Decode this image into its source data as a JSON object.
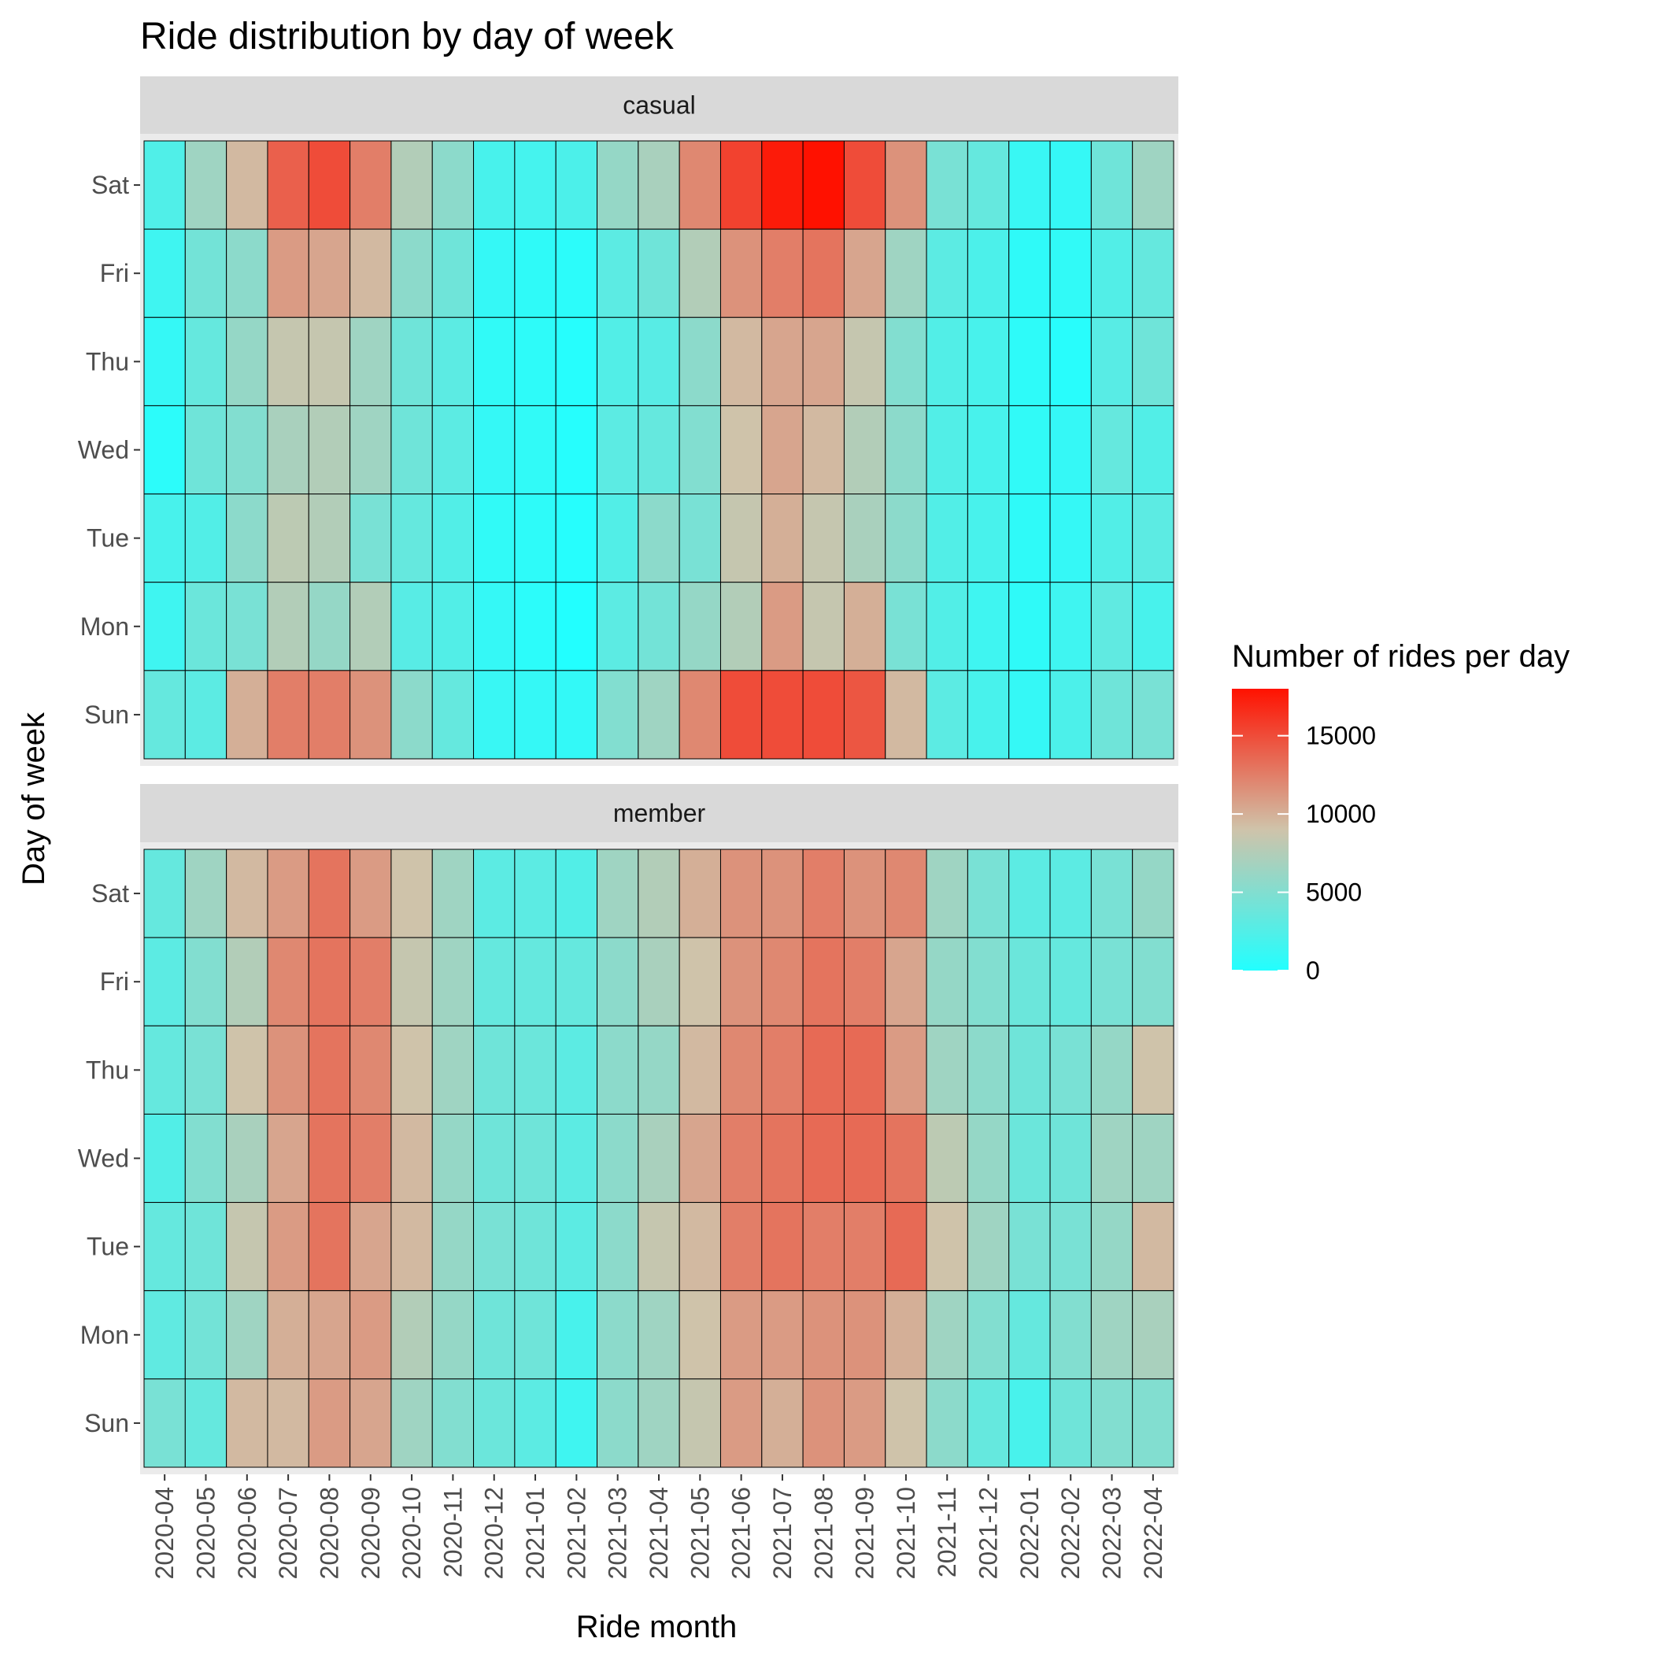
{
  "chart_data": {
    "type": "heatmap",
    "title": "Ride distribution by day of week",
    "xlabel": "Ride month",
    "ylabel": "Day of week",
    "x": [
      "2020-04",
      "2020-05",
      "2020-06",
      "2020-07",
      "2020-08",
      "2020-09",
      "2020-10",
      "2020-11",
      "2020-12",
      "2021-01",
      "2021-02",
      "2021-03",
      "2021-04",
      "2021-05",
      "2021-06",
      "2021-07",
      "2021-08",
      "2021-09",
      "2021-10",
      "2021-11",
      "2021-12",
      "2022-01",
      "2022-02",
      "2022-03",
      "2022-04"
    ],
    "y": [
      "Sat",
      "Fri",
      "Thu",
      "Wed",
      "Tue",
      "Mon",
      "Sun"
    ],
    "legend": {
      "title": "Number of rides per day",
      "ticks": [
        0,
        5000,
        10000,
        15000
      ],
      "range": [
        0,
        18000
      ],
      "low_color": "#22ffff",
      "mid_color": "#cfc3aa",
      "high_color": "#ff1100",
      "placement": "right"
    },
    "panels": [
      {
        "name": "casual",
        "values": [
          [
            2400,
            6500,
            9500,
            14000,
            15000,
            12500,
            7500,
            5500,
            2000,
            1800,
            2200,
            6000,
            7000,
            12000,
            15500,
            17500,
            18000,
            15000,
            11500,
            4500,
            3500,
            1200,
            1000,
            4000,
            6500
          ],
          [
            1500,
            4200,
            5500,
            11000,
            10500,
            9500,
            5500,
            4000,
            1000,
            700,
            500,
            3000,
            4000,
            7500,
            11500,
            12500,
            13000,
            10500,
            6500,
            3000,
            2200,
            700,
            800,
            2500,
            3500
          ],
          [
            1000,
            3500,
            6000,
            8500,
            8500,
            6500,
            4000,
            3000,
            800,
            600,
            200,
            2500,
            2800,
            5500,
            9500,
            10500,
            10500,
            8500,
            5000,
            2500,
            2000,
            600,
            300,
            2800,
            4000
          ],
          [
            500,
            4000,
            5000,
            7000,
            7500,
            6500,
            4000,
            3000,
            1000,
            800,
            200,
            3000,
            3500,
            5000,
            9000,
            10500,
            9500,
            7500,
            5500,
            2500,
            2000,
            800,
            1000,
            3500,
            2500
          ],
          [
            2000,
            2500,
            5500,
            8000,
            7500,
            4500,
            3500,
            2500,
            800,
            600,
            200,
            2500,
            5500,
            4500,
            8500,
            10000,
            8500,
            7000,
            5500,
            2500,
            2000,
            700,
            1000,
            2500,
            3000
          ],
          [
            1500,
            3800,
            4500,
            7500,
            6000,
            7500,
            2800,
            2500,
            1000,
            500,
            0,
            3000,
            4200,
            6000,
            7500,
            11000,
            8500,
            10000,
            4500,
            2500,
            1500,
            700,
            1500,
            3200,
            2000
          ],
          [
            3500,
            3000,
            10000,
            12500,
            12500,
            11500,
            5500,
            3500,
            1200,
            1000,
            900,
            5000,
            6500,
            12000,
            15000,
            15000,
            15000,
            14500,
            9500,
            3000,
            2000,
            1000,
            2200,
            4000,
            4500
          ]
        ]
      },
      {
        "name": "member",
        "values": [
          [
            3500,
            6500,
            9500,
            11000,
            13000,
            11000,
            9000,
            6500,
            3000,
            3000,
            2500,
            6500,
            7500,
            10000,
            11500,
            11500,
            12500,
            11500,
            12000,
            6500,
            4500,
            3000,
            3000,
            4500,
            6000
          ],
          [
            3000,
            5000,
            7500,
            12000,
            13000,
            12500,
            8500,
            6500,
            3500,
            3500,
            3500,
            5500,
            7000,
            9000,
            11500,
            12000,
            13000,
            12500,
            10500,
            6000,
            5000,
            3800,
            3500,
            4500,
            5000
          ],
          [
            3500,
            4500,
            9000,
            11500,
            13000,
            12000,
            9000,
            6500,
            4000,
            3800,
            3000,
            5500,
            6000,
            9500,
            12000,
            12500,
            13500,
            13500,
            11000,
            6500,
            5500,
            4000,
            4500,
            6000,
            9000
          ],
          [
            2500,
            5000,
            7000,
            10500,
            13000,
            12500,
            9500,
            6000,
            4000,
            4000,
            3000,
            5500,
            7000,
            10500,
            12500,
            13000,
            13500,
            13500,
            13000,
            8000,
            6000,
            3800,
            4000,
            6500,
            6500
          ],
          [
            3500,
            4000,
            8500,
            11000,
            13000,
            10500,
            9500,
            6000,
            4500,
            4000,
            3000,
            5500,
            8500,
            9500,
            12500,
            13000,
            12500,
            12500,
            13500,
            9000,
            6500,
            4500,
            4500,
            6000,
            9500
          ],
          [
            3200,
            4200,
            6500,
            10000,
            10500,
            11000,
            7500,
            6000,
            4000,
            4000,
            2000,
            5500,
            6500,
            9000,
            11000,
            11000,
            11500,
            11500,
            10000,
            6500,
            5000,
            3500,
            5000,
            6500,
            7000
          ],
          [
            4500,
            3500,
            9500,
            9500,
            11000,
            10500,
            6500,
            5000,
            3800,
            3000,
            1500,
            5500,
            6500,
            8500,
            11000,
            10000,
            11500,
            11000,
            9000,
            5500,
            3500,
            2000,
            4000,
            5000,
            5000
          ]
        ]
      }
    ]
  }
}
